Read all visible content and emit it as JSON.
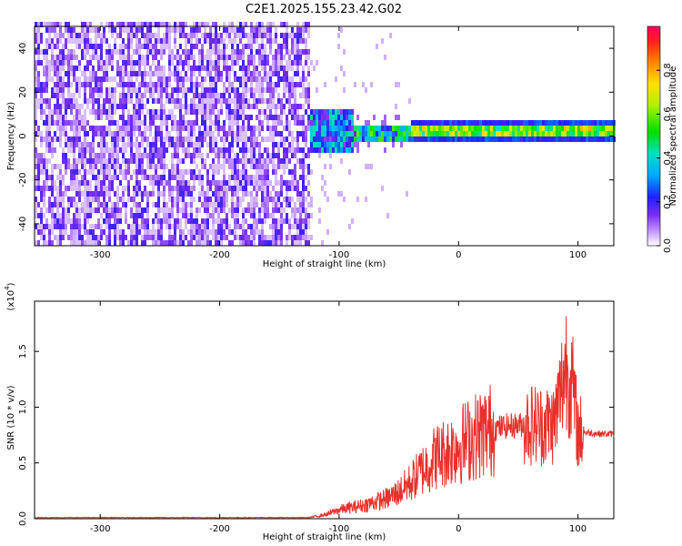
{
  "title": "C2E1.2025.155.23.42.G02",
  "chart_data": [
    {
      "type": "heatmap",
      "xlabel": "Height of straight line (km)",
      "ylabel": "Frequency (Hz)",
      "xlim": [
        -355,
        130
      ],
      "ylim": [
        -50,
        50
      ],
      "x_ticks": [
        -300,
        -200,
        -100,
        0,
        100
      ],
      "y_ticks": [
        -40,
        -20,
        0,
        20,
        40
      ],
      "colorbar": {
        "label": "Normalized spectral amplitude",
        "range": [
          0,
          1
        ],
        "ticks": [
          "0.0",
          "0.2",
          "0.4",
          "0.6",
          "0.8"
        ]
      },
      "regions": [
        {
          "x_range": [
            -355,
            -125
          ],
          "freq_range": [
            -50,
            50
          ],
          "amplitude": 0.1
        },
        {
          "x_range": [
            -125,
            -90
          ],
          "freq_range": [
            -8,
            12
          ],
          "amplitude": 0.35
        },
        {
          "x_range": [
            -90,
            -40
          ],
          "freq_range": [
            -5,
            4
          ],
          "amplitude": 0.45
        },
        {
          "x_range": [
            -40,
            130
          ],
          "freq_range": [
            -2,
            3
          ],
          "amplitude": 0.75
        }
      ]
    },
    {
      "type": "line",
      "xlabel": "Height of straight line (km)",
      "ylabel": "SNR (10 * v/v)",
      "y_scale_label": "(x10",
      "y_scale_exp": "4",
      "xlim": [
        -355,
        130
      ],
      "ylim": [
        0,
        1.95
      ],
      "x_ticks": [
        -300,
        -200,
        -100,
        0,
        100
      ],
      "y_ticks": [
        "0.0",
        "0.5",
        "1.0",
        "1.5"
      ],
      "series": [
        {
          "x": [
            -355,
            -300,
            -200,
            -125,
            -110,
            -100,
            -80,
            -60,
            -50,
            -40,
            -30,
            -20,
            -10,
            0,
            10,
            20,
            30,
            40,
            50,
            60,
            70,
            80,
            85,
            90,
            95,
            100,
            110,
            120,
            130
          ],
          "y": [
            0.01,
            0.01,
            0.01,
            0.01,
            0.04,
            0.08,
            0.12,
            0.18,
            0.24,
            0.33,
            0.44,
            0.55,
            0.6,
            0.66,
            0.72,
            0.77,
            0.81,
            0.83,
            0.84,
            0.85,
            0.84,
            0.85,
            1.1,
            1.4,
            1.2,
            0.78,
            0.77,
            0.76,
            0.76
          ]
        }
      ],
      "color": "#e8302c"
    }
  ]
}
